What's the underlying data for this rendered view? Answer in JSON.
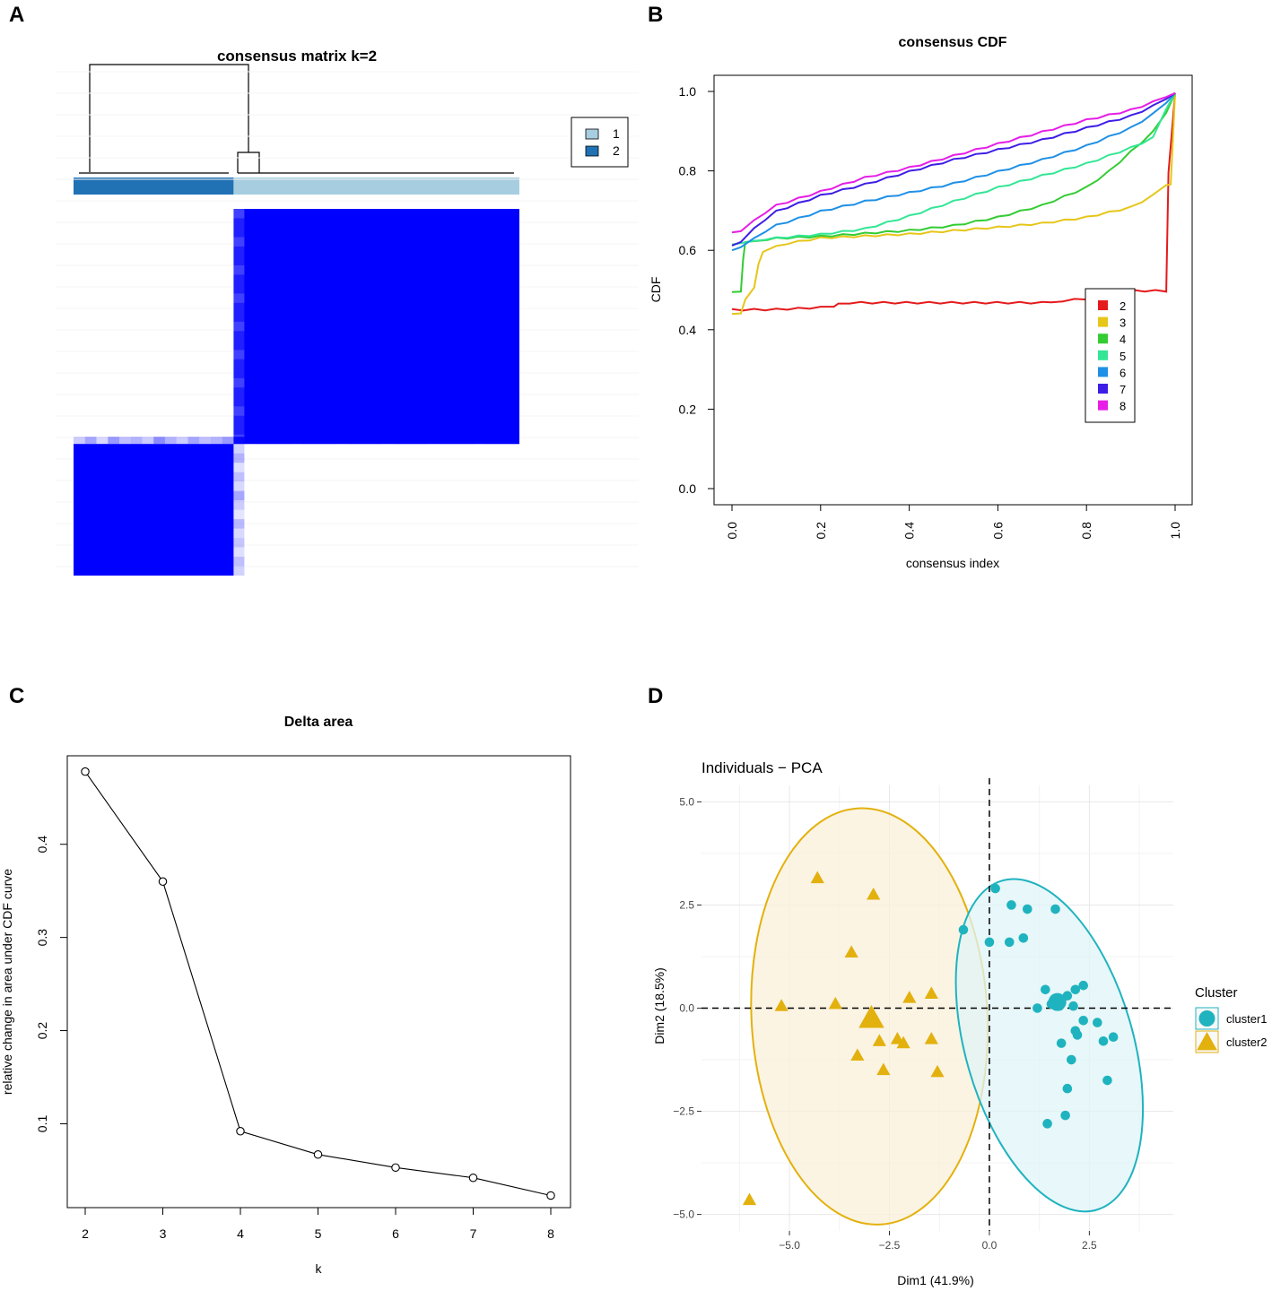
{
  "panel_letters": [
    "A",
    "B",
    "C",
    "D"
  ],
  "colors": {
    "heat_fill": "#0000ff",
    "heat_dark_bar": "#2171b5",
    "heat_light_bar": "#a6cde0",
    "cdf": [
      "#e41a1c",
      "#e6c619",
      "#33cc33",
      "#33e695",
      "#1e90e6",
      "#3d1ee6",
      "#e61ee6"
    ],
    "pca_cluster1": "#1fb3bf",
    "pca_cluster2": "#e3b10e",
    "pca_ellipse1_fill": "#e0f4f7",
    "pca_ellipse2_fill": "#faf0d9"
  },
  "chart_data": [
    {
      "panel": "A",
      "type": "heatmap",
      "title": "consensus matrix k=2",
      "legend": [
        "1",
        "2"
      ],
      "clusters": [
        {
          "label": "2",
          "size": 14
        },
        {
          "label": "1",
          "size": 25
        }
      ],
      "within_cluster_consensus": 1.0,
      "between_cluster_consensus": 0.0
    },
    {
      "panel": "B",
      "type": "line",
      "title": "consensus CDF",
      "xlabel": "consensus index",
      "ylabel": "CDF",
      "xlim": [
        0,
        1
      ],
      "ylim": [
        0,
        1
      ],
      "xticks": [
        "0.0",
        "0.2",
        "0.4",
        "0.6",
        "0.8",
        "1.0"
      ],
      "yticks": [
        "0.0",
        "0.2",
        "0.4",
        "0.6",
        "0.8",
        "1.0"
      ],
      "legend": [
        "2",
        "3",
        "4",
        "5",
        "6",
        "7",
        "8"
      ],
      "series": [
        {
          "name": "2",
          "x": [
            0,
            0.1,
            0.2,
            0.23,
            0.24,
            0.7,
            0.72,
            0.8,
            0.81,
            0.98,
            0.985,
            1.0
          ],
          "y": [
            0.452,
            0.453,
            0.458,
            0.462,
            0.47,
            0.47,
            0.473,
            0.48,
            0.5,
            0.5,
            0.8,
            1.0
          ]
        },
        {
          "name": "3",
          "x": [
            0,
            0.02,
            0.03,
            0.05,
            0.06,
            0.07,
            0.1,
            0.2,
            0.4,
            0.6,
            0.7,
            0.8,
            0.9,
            0.95,
            0.98,
            0.99,
            1.0
          ],
          "y": [
            0.44,
            0.445,
            0.48,
            0.51,
            0.57,
            0.6,
            0.615,
            0.633,
            0.643,
            0.66,
            0.67,
            0.685,
            0.71,
            0.74,
            0.768,
            0.77,
            1.0
          ]
        },
        {
          "name": "4",
          "x": [
            0,
            0.02,
            0.025,
            0.03,
            0.06,
            0.1,
            0.2,
            0.4,
            0.5,
            0.6,
            0.7,
            0.8,
            0.85,
            0.9,
            0.95,
            0.98,
            1.0
          ],
          "y": [
            0.495,
            0.5,
            0.58,
            0.625,
            0.628,
            0.632,
            0.637,
            0.652,
            0.664,
            0.685,
            0.715,
            0.76,
            0.8,
            0.85,
            0.9,
            0.95,
            1.0
          ]
        },
        {
          "name": "5",
          "x": [
            0,
            0.02,
            0.05,
            0.1,
            0.2,
            0.3,
            0.4,
            0.5,
            0.6,
            0.7,
            0.8,
            0.9,
            0.95,
            0.98,
            1.0
          ],
          "y": [
            0.615,
            0.622,
            0.628,
            0.633,
            0.642,
            0.656,
            0.688,
            0.725,
            0.76,
            0.79,
            0.82,
            0.86,
            0.885,
            0.96,
            1.0
          ]
        },
        {
          "name": "6",
          "x": [
            0,
            0.02,
            0.05,
            0.1,
            0.2,
            0.3,
            0.4,
            0.5,
            0.6,
            0.7,
            0.8,
            0.9,
            0.95,
            0.98,
            1.0
          ],
          "y": [
            0.6,
            0.612,
            0.635,
            0.665,
            0.7,
            0.725,
            0.747,
            0.77,
            0.8,
            0.83,
            0.865,
            0.91,
            0.945,
            0.975,
            1.0
          ]
        },
        {
          "name": "7",
          "x": [
            0,
            0.02,
            0.05,
            0.1,
            0.2,
            0.3,
            0.4,
            0.5,
            0.6,
            0.7,
            0.8,
            0.9,
            0.95,
            0.98,
            1.0
          ],
          "y": [
            0.612,
            0.625,
            0.66,
            0.7,
            0.74,
            0.768,
            0.8,
            0.83,
            0.855,
            0.88,
            0.91,
            0.94,
            0.965,
            0.985,
            1.0
          ]
        },
        {
          "name": "8",
          "x": [
            0,
            0.02,
            0.05,
            0.1,
            0.2,
            0.3,
            0.4,
            0.5,
            0.6,
            0.7,
            0.8,
            0.9,
            0.95,
            0.98,
            1.0
          ],
          "y": [
            0.645,
            0.652,
            0.68,
            0.715,
            0.75,
            0.785,
            0.81,
            0.84,
            0.87,
            0.9,
            0.93,
            0.955,
            0.975,
            0.99,
            1.0
          ]
        }
      ]
    },
    {
      "panel": "C",
      "type": "line",
      "title": "Delta area",
      "xlabel": "k",
      "ylabel": "relative change in area under CDF curve",
      "xticks": [
        "2",
        "3",
        "4",
        "5",
        "6",
        "7",
        "8"
      ],
      "yticks": [
        "0.1",
        "0.2",
        "0.3",
        "0.4"
      ],
      "ylim": [
        0.01,
        0.495
      ],
      "x": [
        2,
        3,
        4,
        5,
        6,
        7,
        8
      ],
      "y": [
        0.478,
        0.36,
        0.092,
        0.067,
        0.053,
        0.042,
        0.023
      ]
    },
    {
      "panel": "D",
      "type": "scatter",
      "title": "Individuals − PCA",
      "xlabel": "Dim1 (41.9%)",
      "ylabel": "Dim2 (18.5%)",
      "xlim": [
        -7.2,
        4.6
      ],
      "ylim": [
        -5.4,
        5.4
      ],
      "xticks": [
        "−5.0",
        "−2.5",
        "0.0",
        "2.5"
      ],
      "yticks": [
        "−5.0",
        "−2.5",
        "0.0",
        "2.5",
        "5.0"
      ],
      "legend_title": "Cluster",
      "series": [
        {
          "name": "cluster1",
          "shape": "circle",
          "points": [
            [
              0.15,
              2.9
            ],
            [
              0.55,
              2.5
            ],
            [
              0.95,
              2.4
            ],
            [
              1.65,
              2.4
            ],
            [
              -0.65,
              1.9
            ],
            [
              0.0,
              1.6
            ],
            [
              0.5,
              1.6
            ],
            [
              0.85,
              1.7
            ],
            [
              1.4,
              0.45
            ],
            [
              2.15,
              0.45
            ],
            [
              2.35,
              0.55
            ],
            [
              1.95,
              0.3
            ],
            [
              1.55,
              0.1
            ],
            [
              1.75,
              0.05
            ],
            [
              2.1,
              0.05
            ],
            [
              1.2,
              0.0
            ],
            [
              2.35,
              -0.3
            ],
            [
              2.7,
              -0.35
            ],
            [
              2.15,
              -0.55
            ],
            [
              2.2,
              -0.65
            ],
            [
              3.1,
              -0.7
            ],
            [
              1.8,
              -0.85
            ],
            [
              2.85,
              -0.8
            ],
            [
              2.05,
              -1.25
            ],
            [
              2.95,
              -1.75
            ],
            [
              1.95,
              -1.95
            ],
            [
              1.9,
              -2.6
            ],
            [
              1.45,
              -2.8
            ]
          ],
          "centroid": [
            1.7,
            0.15
          ],
          "ellipse": {
            "cx": 1.5,
            "cy": -0.9,
            "rx": 2.1,
            "ry": 4.15,
            "angle_deg": -16
          }
        },
        {
          "name": "cluster2",
          "shape": "triangle",
          "points": [
            [
              -4.3,
              3.15
            ],
            [
              -2.9,
              2.75
            ],
            [
              -3.45,
              1.35
            ],
            [
              -5.2,
              0.05
            ],
            [
              -3.85,
              0.1
            ],
            [
              -2.0,
              0.25
            ],
            [
              -1.45,
              0.35
            ],
            [
              -2.75,
              -0.8
            ],
            [
              -2.3,
              -0.75
            ],
            [
              -2.15,
              -0.85
            ],
            [
              -1.45,
              -0.75
            ],
            [
              -3.3,
              -1.15
            ],
            [
              -2.65,
              -1.5
            ],
            [
              -1.3,
              -1.55
            ],
            [
              -6.0,
              -4.65
            ]
          ],
          "centroid": [
            -2.95,
            -0.25
          ],
          "ellipse": {
            "cx": -3.0,
            "cy": -0.2,
            "rx": 2.95,
            "ry": 5.05,
            "angle_deg": -3
          }
        }
      ]
    }
  ]
}
